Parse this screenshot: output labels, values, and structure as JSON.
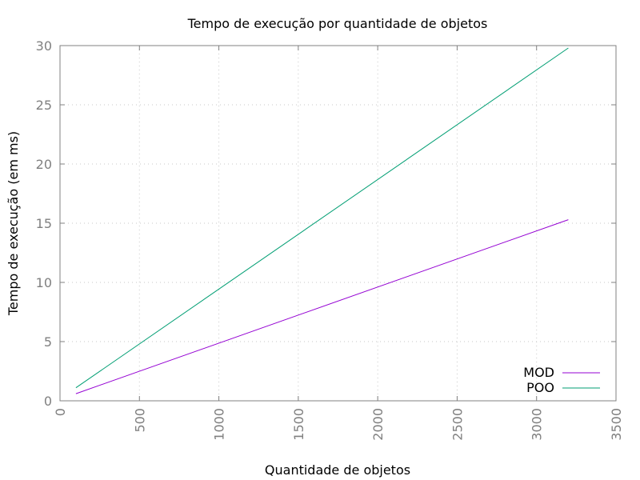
{
  "chart_data": {
    "type": "line",
    "title": "Tempo de execução por quantidade de objetos",
    "xlabel": "Quantidade de objetos",
    "ylabel": "Tempo de execução (em ms)",
    "xlim": [
      0,
      3500
    ],
    "ylim": [
      0,
      30
    ],
    "x_ticks": [
      "0",
      "500",
      "1000",
      "1500",
      "2000",
      "2500",
      "3000",
      "3500"
    ],
    "y_ticks": [
      "0",
      "5",
      "10",
      "15",
      "20",
      "25",
      "30"
    ],
    "grid": true,
    "legend_position": "bottom-right",
    "series": [
      {
        "name": "MOD",
        "color": "#9400d3",
        "x": [
          100,
          3200
        ],
        "y": [
          0.6,
          15.3
        ]
      },
      {
        "name": "POO",
        "color": "#009e73",
        "x": [
          100,
          3200
        ],
        "y": [
          1.1,
          29.8
        ]
      }
    ]
  }
}
